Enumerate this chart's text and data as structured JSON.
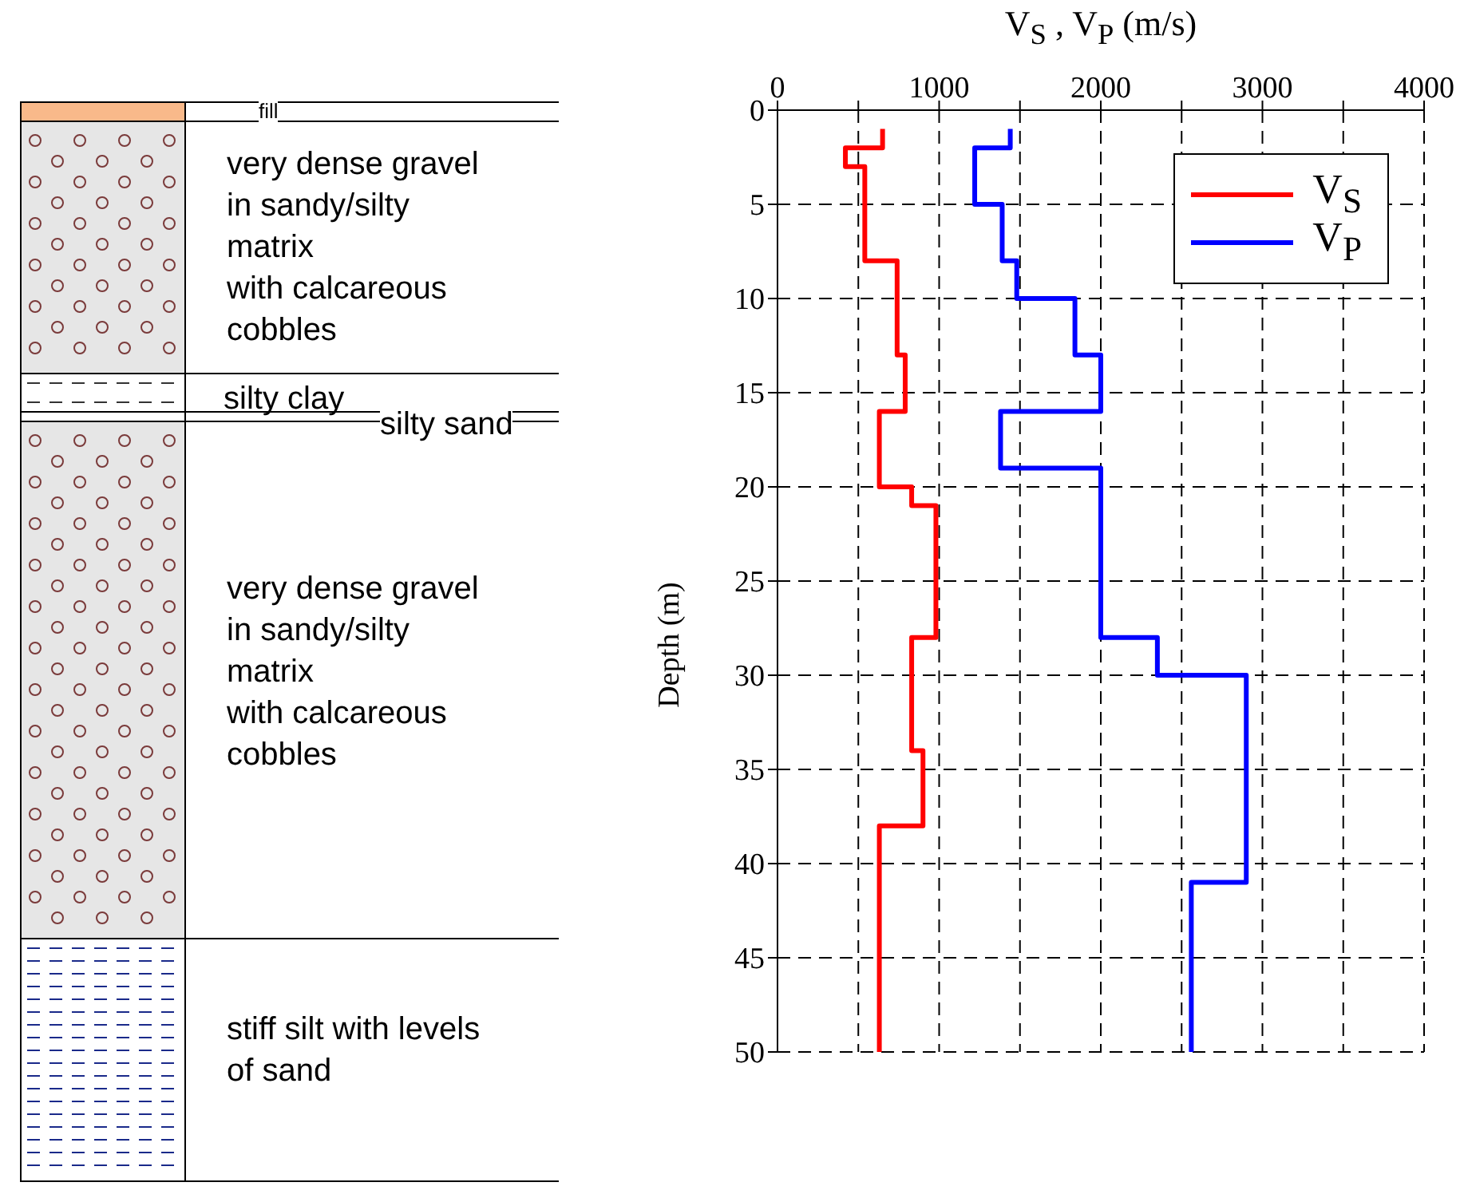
{
  "chart_data": [
    {
      "type": "other",
      "annotations": [
        "fill",
        "very dense gravel\nin sandy/silty\nmatrix\nwith calcareous\ncobbles",
        "silty clay",
        "silty sand",
        "very dense gravel\nin sandy/silty\nmatrix\nwith calcareous\ncobbles",
        "stiff silt with levels\nof sand"
      ]
    },
    {
      "type": "line",
      "xlabel": "V$_{S}$ , V$_{P}$ (m/s)",
      "ylabel": "Depth (m)",
      "xlim": [
        0,
        4000
      ],
      "xticks": [
        0,
        {
          "value": 500,
          "label": null
        },
        1000,
        {
          "value": 1500,
          "label": null
        },
        2000,
        {
          "value": 2500,
          "label": null
        },
        3000,
        {
          "value": 3500,
          "label": null
        },
        4000
      ],
      "ylim": [
        50,
        0
      ],
      "yticks": [
        0,
        5,
        10,
        15,
        20,
        25,
        30,
        35,
        40,
        45,
        50
      ],
      "grid": true,
      "legend": "top right",
      "line_style": "solid",
      "marker": "none",
      "series": [
        {
          "name": "V$_{S}$",
          "color": "#ff0000",
          "x": [
            650,
            650,
            420,
            420,
            540,
            540,
            740,
            740,
            790,
            790,
            630,
            630,
            830,
            830,
            980,
            980,
            830,
            830,
            900,
            900,
            630,
            630
          ],
          "values": [
            1,
            2,
            2,
            3,
            3,
            8,
            8,
            13,
            13,
            16,
            16,
            20,
            20,
            21,
            21,
            28,
            28,
            34,
            34,
            38,
            38,
            50
          ]
        },
        {
          "name": "V$_{P}$",
          "color": "#0000ff",
          "x": [
            1440,
            1440,
            1220,
            1220,
            1390,
            1390,
            1480,
            1480,
            1840,
            1840,
            2000,
            2000,
            1380,
            1380,
            2000,
            2000,
            2350,
            2350,
            2900,
            2900,
            2560,
            2560
          ],
          "values": [
            1,
            2,
            2,
            5,
            5,
            8,
            8,
            10,
            10,
            13,
            13,
            16,
            16,
            19,
            19,
            28,
            28,
            30,
            30,
            41,
            41,
            50
          ]
        }
      ]
    }
  ]
}
